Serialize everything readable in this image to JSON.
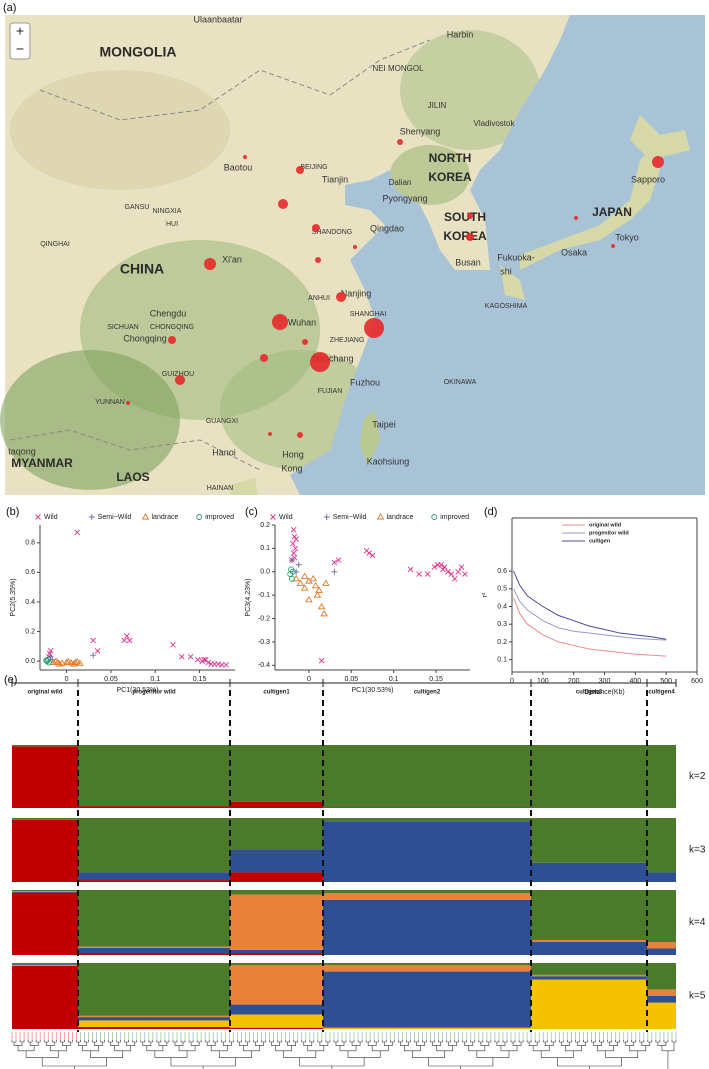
{
  "map": {
    "panel": "(a)",
    "zoom_in": "+",
    "zoom_out": "−",
    "labels": [
      "Ulaanbaatar",
      "MONGOLIA",
      "NEI MONGOL",
      "Harbin",
      "JILIN",
      "Vladivostok",
      "Sapporo",
      "Shenyang",
      "NORTH",
      "KOREA",
      "Dalian",
      "Pyongyang",
      "SOUTH",
      "KOREA",
      "Busan",
      "JAPAN",
      "Tokyo",
      "Osaka",
      "Fukuoka-",
      "shi",
      "KAGOSHIMA",
      "OKINAWA",
      "Baotou",
      "BEIJING",
      "Tianjin",
      "GANSU",
      "NINGXIA",
      "HUI",
      "QINGHAI",
      "SHANDONG",
      "Qingdao",
      "CHINA",
      "Xi'an",
      "ANHUI",
      "Nanjing",
      "SHANGHAI",
      "Wuhan",
      "ZHEJIANG",
      "SICHUAN",
      "Chengdu",
      "CHONGQING",
      "Chongqing",
      "Nanchang",
      "FUJIAN",
      "Fuzhou",
      "Taipei",
      "Kaohsiung",
      "GUIZHOU",
      "YUNNAN",
      "GUANGXI",
      "Hong",
      "Kong",
      "Hanoi",
      "LAOS",
      "MYANMAR",
      "HAINAN",
      "taqong"
    ]
  },
  "chart_data": [
    {
      "type": "scatter",
      "panel": "(b)",
      "xlabel": "PC1(30.53%)",
      "ylabel": "PC2(5.35%)",
      "xlim": [
        -0.03,
        0.19
      ],
      "xticks": [
        0,
        0.05,
        0.1,
        0.15
      ],
      "ylim": [
        -0.06,
        0.92
      ],
      "yticks": [
        {
          "value": 0,
          "label": "0.0"
        },
        0.2,
        0.4,
        0.6,
        0.8
      ],
      "series": [
        {
          "name": "Wild",
          "color": "#e0318a",
          "marker": "x",
          "x": [
            0.012,
            0.03,
            0.035,
            0.065,
            0.068,
            0.071,
            0.12,
            0.13,
            0.14,
            0.148,
            0.153,
            0.157,
            0.16,
            0.163,
            0.167,
            0.171,
            0.175,
            0.18,
            0.155,
            -0.019,
            -0.018,
            -0.02
          ],
          "values": [
            0.87,
            0.14,
            0.07,
            0.14,
            0.17,
            0.14,
            0.11,
            0.03,
            0.03,
            0.01,
            0.0,
            0.01,
            -0.01,
            -0.02,
            -0.02,
            -0.02,
            -0.025,
            -0.025,
            0.01,
            0.05,
            0.07,
            0.03
          ]
        },
        {
          "name": "Semi−Wild",
          "color": "#6a6aae",
          "marker": "plus",
          "x": [
            0.03,
            -0.018,
            -0.016
          ],
          "values": [
            0.04,
            0.03,
            0.01
          ]
        },
        {
          "name": "landrace",
          "color": "#e07a28",
          "marker": "triangle",
          "x": [
            -0.015,
            -0.01,
            -0.005,
            0.0,
            0.005,
            0.01,
            0.015,
            -0.012,
            0.002,
            0.008,
            -0.008,
            0.012
          ],
          "values": [
            -0.01,
            -0.01,
            -0.015,
            -0.01,
            -0.012,
            -0.01,
            -0.015,
            0.0,
            -0.005,
            -0.02,
            -0.02,
            -0.005
          ]
        },
        {
          "name": "improved",
          "color": "#2a9a6a",
          "marker": "circle",
          "x": [
            -0.022,
            -0.021,
            -0.02,
            -0.023
          ],
          "values": [
            0.0,
            0.01,
            -0.01,
            0.005
          ]
        }
      ]
    },
    {
      "type": "scatter",
      "panel": "(c)",
      "xlabel": "PC1(30.53%)",
      "ylabel": "PC3(4.23%)",
      "xlim": [
        -0.04,
        0.19
      ],
      "xticks": [
        0,
        0.05,
        0.1,
        0.15
      ],
      "ylim": [
        -0.42,
        0.2
      ],
      "yticks": [
        -0.4,
        -0.3,
        -0.2,
        -0.1,
        {
          "value": 0,
          "label": "0.0"
        },
        0.1,
        0.2
      ],
      "series": [
        {
          "name": "Wild",
          "color": "#e0318a",
          "marker": "x",
          "x": [
            -0.018,
            -0.017,
            -0.019,
            -0.016,
            -0.015,
            -0.018,
            -0.017,
            -0.02,
            0.015,
            0.03,
            0.035,
            0.068,
            0.071,
            0.075,
            0.12,
            0.13,
            0.14,
            0.148,
            0.152,
            0.156,
            0.16,
            0.164,
            0.168,
            0.172,
            0.176,
            0.18,
            0.184,
            0.158
          ],
          "values": [
            0.18,
            0.15,
            0.12,
            0.1,
            0.14,
            0.08,
            0.06,
            0.05,
            -0.38,
            0.04,
            0.05,
            0.09,
            0.08,
            0.07,
            0.01,
            -0.01,
            -0.01,
            0.02,
            0.03,
            0.03,
            0.02,
            0.0,
            -0.01,
            -0.03,
            0.0,
            0.02,
            -0.01,
            0.01
          ]
        },
        {
          "name": "Semi−Wild",
          "color": "#6a6aae",
          "marker": "plus",
          "x": [
            0.03,
            -0.02,
            -0.015,
            -0.012
          ],
          "values": [
            0.0,
            0.05,
            0.0,
            0.03
          ]
        },
        {
          "name": "landrace",
          "color": "#e07a28",
          "marker": "triangle",
          "x": [
            -0.015,
            -0.01,
            -0.005,
            0.0,
            0.005,
            0.01,
            0.015,
            0.018,
            0.0,
            0.02,
            0.012,
            0.008,
            -0.005
          ],
          "values": [
            -0.03,
            -0.05,
            -0.07,
            -0.04,
            -0.03,
            -0.1,
            -0.15,
            -0.18,
            -0.12,
            -0.05,
            -0.08,
            -0.06,
            -0.02
          ]
        },
        {
          "name": "improved",
          "color": "#2a9a6a",
          "marker": "circle",
          "x": [
            -0.022,
            -0.02,
            -0.021,
            -0.019
          ],
          "values": [
            -0.01,
            -0.03,
            0.01,
            0.0
          ]
        }
      ]
    },
    {
      "type": "line",
      "panel": "(d)",
      "xlabel": "Distance(Kb)",
      "ylabel": "r²",
      "xlim": [
        0,
        600
      ],
      "xticks": [
        0,
        100,
        200,
        300,
        400,
        500,
        600
      ],
      "ylim": [
        0.03,
        0.9
      ],
      "yticks": [
        0.1,
        0.2,
        0.3,
        0.4,
        0.5,
        0.6
      ],
      "x": [
        5,
        25,
        50,
        100,
        150,
        200,
        250,
        300,
        350,
        400,
        450,
        500
      ],
      "series": [
        {
          "name": "original wild",
          "color": "#f08a8a",
          "values": [
            0.45,
            0.36,
            0.3,
            0.24,
            0.2,
            0.18,
            0.16,
            0.15,
            0.14,
            0.13,
            0.125,
            0.12
          ]
        },
        {
          "name": "progenitor wild",
          "color": "#9a9ad0",
          "values": [
            0.5,
            0.43,
            0.38,
            0.32,
            0.28,
            0.26,
            0.25,
            0.24,
            0.23,
            0.22,
            0.215,
            0.21
          ]
        },
        {
          "name": "cultigen",
          "color": "#4a4a9a",
          "values": [
            0.6,
            0.52,
            0.46,
            0.4,
            0.35,
            0.32,
            0.29,
            0.27,
            0.25,
            0.24,
            0.23,
            0.215
          ]
        }
      ]
    },
    {
      "type": "structure",
      "panel": "(e)",
      "stacked": true,
      "categories": [
        "original wild",
        "progenitor wild",
        "cultigen1",
        "cultigen2",
        "cultigen3",
        "cultigen4"
      ],
      "panels": [
        {
          "label": "k=2",
          "series": [
            {
              "color": "#c00000",
              "values": [
                0.98,
                0.03,
                0.1,
                0.01,
                0,
                0
              ]
            },
            {
              "color": "#4a7a2a",
              "values": [
                0.02,
                0.97,
                0.9,
                0.99,
                1,
                1
              ]
            }
          ]
        },
        {
          "label": "k=3",
          "series": [
            {
              "color": "#c00000",
              "values": [
                0.97,
                0.03,
                0.15,
                0,
                0,
                0
              ]
            },
            {
              "color": "#2e4f94",
              "values": [
                0.01,
                0.12,
                0.35,
                0.95,
                0.3,
                0.15
              ]
            },
            {
              "color": "#4a7a2a",
              "values": [
                0.02,
                0.85,
                0.5,
                0.05,
                0.7,
                0.85
              ]
            }
          ]
        },
        {
          "label": "k=4",
          "series": [
            {
              "color": "#c00000",
              "values": [
                0.96,
                0.03,
                0.03,
                0,
                0,
                0
              ]
            },
            {
              "color": "#2e4f94",
              "values": [
                0.01,
                0.08,
                0.05,
                0.85,
                0.2,
                0.1
              ]
            },
            {
              "color": "#e8823a",
              "values": [
                0.01,
                0.02,
                0.85,
                0.1,
                0.03,
                0.1
              ]
            },
            {
              "color": "#4a7a2a",
              "values": [
                0.02,
                0.87,
                0.07,
                0.05,
                0.77,
                0.8
              ]
            }
          ]
        },
        {
          "label": "k=5",
          "series": [
            {
              "color": "#c00000",
              "values": [
                0.96,
                0.03,
                0.02,
                0,
                0,
                0
              ]
            },
            {
              "color": "#f5c200",
              "values": [
                0.01,
                0.1,
                0.2,
                0.02,
                0.75,
                0.4
              ]
            },
            {
              "color": "#2e4f94",
              "values": [
                0.01,
                0.05,
                0.15,
                0.85,
                0.05,
                0.1
              ]
            },
            {
              "color": "#e8823a",
              "values": [
                0,
                0.02,
                0.6,
                0.1,
                0.02,
                0.1
              ]
            },
            {
              "color": "#4a7a2a",
              "values": [
                0.02,
                0.8,
                0.03,
                0.03,
                0.18,
                0.4
              ]
            }
          ]
        }
      ]
    }
  ]
}
